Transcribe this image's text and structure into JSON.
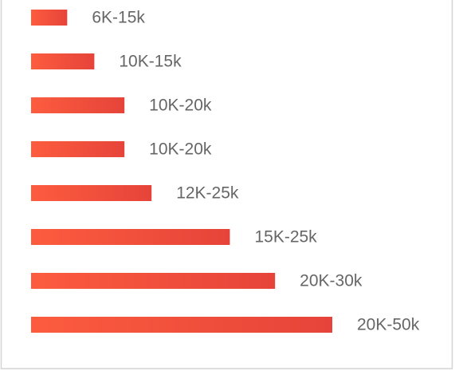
{
  "chart_data": {
    "type": "hbar",
    "categories": [
      "6K-15k",
      "10K-15k",
      "10K-20k",
      "10K-20k",
      "12K-25k",
      "15K-25k",
      "20K-30k",
      "20K-50k"
    ],
    "values": [
      12,
      21,
      31,
      31,
      40,
      66,
      81,
      100
    ],
    "xlim": [
      0,
      100
    ],
    "gradient": [
      "#fc5c3e",
      "#e6443a"
    ]
  }
}
